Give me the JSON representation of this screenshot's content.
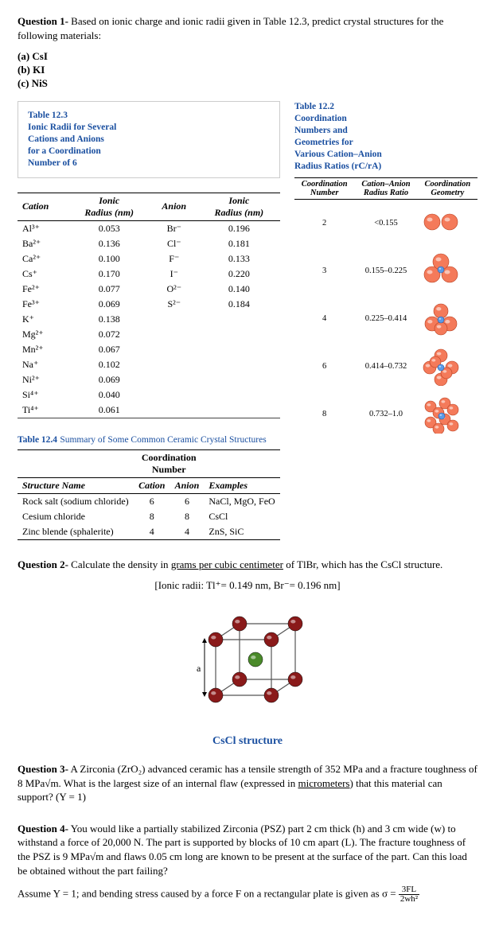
{
  "q1": {
    "prefix": "Question 1-",
    "text": " Based on ionic charge and ionic radii given in Table 12.3, predict crystal structures for the following materials:",
    "a": "(a) CsI",
    "b": "(b) KI",
    "c": "(c) NiS"
  },
  "tbl123": {
    "title_l1": "Table 12.3",
    "title_l2": "Ionic Radii for Several",
    "title_l3": "Cations and Anions",
    "title_l4": "for a Coordination",
    "title_l5": "Number of 6",
    "h_cation": "Cation",
    "h_ion_r1": "Ionic",
    "h_ion_r2": "Radius (nm)",
    "h_anion": "Anion",
    "rows": [
      {
        "c": "Al³⁺",
        "cr": "0.053",
        "a": "Br⁻",
        "ar": "0.196"
      },
      {
        "c": "Ba²⁺",
        "cr": "0.136",
        "a": "Cl⁻",
        "ar": "0.181"
      },
      {
        "c": "Ca²⁺",
        "cr": "0.100",
        "a": "F⁻",
        "ar": "0.133"
      },
      {
        "c": "Cs⁺",
        "cr": "0.170",
        "a": "I⁻",
        "ar": "0.220"
      },
      {
        "c": "Fe²⁺",
        "cr": "0.077",
        "a": "O²⁻",
        "ar": "0.140"
      },
      {
        "c": "Fe³⁺",
        "cr": "0.069",
        "a": "S²⁻",
        "ar": "0.184"
      },
      {
        "c": "K⁺",
        "cr": "0.138",
        "a": "",
        "ar": ""
      },
      {
        "c": "Mg²⁺",
        "cr": "0.072",
        "a": "",
        "ar": ""
      },
      {
        "c": "Mn²⁺",
        "cr": "0.067",
        "a": "",
        "ar": ""
      },
      {
        "c": "Na⁺",
        "cr": "0.102",
        "a": "",
        "ar": ""
      },
      {
        "c": "Ni²⁺",
        "cr": "0.069",
        "a": "",
        "ar": ""
      },
      {
        "c": "Si⁴⁺",
        "cr": "0.040",
        "a": "",
        "ar": ""
      },
      {
        "c": "Ti⁴⁺",
        "cr": "0.061",
        "a": "",
        "ar": ""
      }
    ]
  },
  "tbl124": {
    "title": "Table 12.4",
    "subtitle": "Summary of Some Common Ceramic Crystal Structures",
    "h_coord": "Coordination",
    "h_num": "Number",
    "h_struct": "Structure Name",
    "h_cat": "Cation",
    "h_an": "Anion",
    "h_ex": "Examples",
    "rows": [
      {
        "s": "Rock salt (sodium chloride)",
        "c": "6",
        "a": "6",
        "e": "NaCl, MgO, FeO"
      },
      {
        "s": "Cesium chloride",
        "c": "8",
        "a": "8",
        "e": "CsCl"
      },
      {
        "s": "Zinc blende (sphalerite)",
        "c": "4",
        "a": "4",
        "e": "ZnS, SiC"
      }
    ]
  },
  "tbl122": {
    "title_l1": "Table 12.2",
    "title_l2": "Coordination",
    "title_l3": "Numbers and",
    "title_l4": "Geometries for",
    "title_l5": "Various Cation–Anion",
    "title_l6": "Radius Ratios (rC/rA)",
    "h1": "Coordination",
    "h1b": "Number",
    "h2": "Cation–Anion",
    "h2b": "Radius Ratio",
    "h3": "Coordination",
    "h3b": "Geometry",
    "rows": [
      {
        "n": "2",
        "r": "<0.155"
      },
      {
        "n": "3",
        "r": "0.155–0.225"
      },
      {
        "n": "4",
        "r": "0.225–0.414"
      },
      {
        "n": "6",
        "r": "0.414–0.732"
      },
      {
        "n": "8",
        "r": "0.732–1.0"
      }
    ],
    "colors": {
      "anion_fill": "#f47a5a",
      "anion_stroke": "#b63d1e",
      "cation_fill": "#5a9be8",
      "cation_stroke": "#2a5aa0"
    }
  },
  "q2": {
    "prefix": "Question 2-",
    "text": " Calculate the density in ",
    "u1": "grams per cubic centimeter",
    "text2": " of TlBr, which has the CsCl structure.",
    "sub": "[Ionic radii: Tl⁺= 0.149 nm, Br⁻= 0.196 nm]",
    "label": "CsCl structure",
    "a_label": "a",
    "colors": {
      "corner": "#8a1a1a",
      "center": "#4a8a2a",
      "edge": "#555"
    }
  },
  "q3": {
    "prefix": "Question 3-",
    "text": " A Zirconia (ZrO₂) advanced ceramic has a tensile strength of 352 MPa and a fracture toughness of 8 MPa√m. What is the largest size of an internal flaw (expressed in ",
    "u1": "micrometers",
    "text2": ") that this material can support? (Y = 1)"
  },
  "q4": {
    "prefix": "Question 4-",
    "text": " You would like a partially stabilized Zirconia (PSZ) part 2 cm thick (h) and 3 cm wide (w) to withstand a force of 20,000 N. The part is supported by blocks of 10 cm apart (L). The fracture toughness of the PSZ is 9 MPa√m and flaws 0.05 cm long are known to be present at the surface of the part. Can this load be obtained without the part failing?",
    "assume": "Assume Y = 1; and bending stress caused by a force F on a rectangular plate is given as σ = ",
    "num": "3FL",
    "den": "2wh²"
  }
}
